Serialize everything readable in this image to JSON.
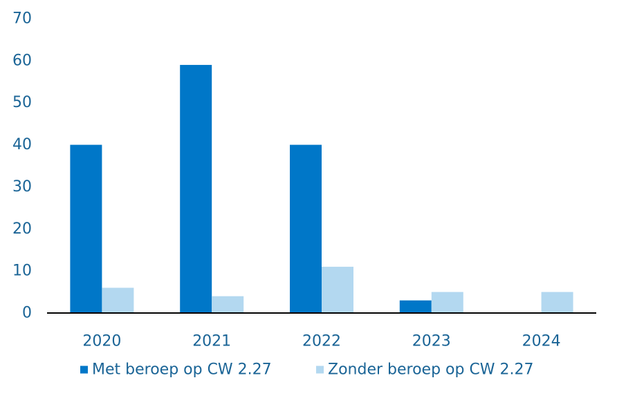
{
  "chart_data": {
    "type": "bar",
    "title": "",
    "xlabel": "",
    "ylabel": "",
    "categories": [
      "2020",
      "2021",
      "2022",
      "2023",
      "2024"
    ],
    "series": [
      {
        "name": "Met beroep op CW 2.27",
        "values": [
          40,
          59,
          40,
          3,
          0
        ],
        "color": "#0077c8"
      },
      {
        "name": "Zonder beroep op CW 2.27",
        "values": [
          6,
          4,
          11,
          5,
          5
        ],
        "color": "#b3d8f0"
      }
    ],
    "ylim": [
      0,
      70
    ],
    "yticks": [
      0,
      10,
      20,
      30,
      40,
      50,
      60,
      70
    ],
    "grid": false,
    "legend_position": "bottom",
    "colors": {
      "tick_text": "#1a6496",
      "legend_text": "#1a6496",
      "axis_line": "#000000"
    }
  }
}
